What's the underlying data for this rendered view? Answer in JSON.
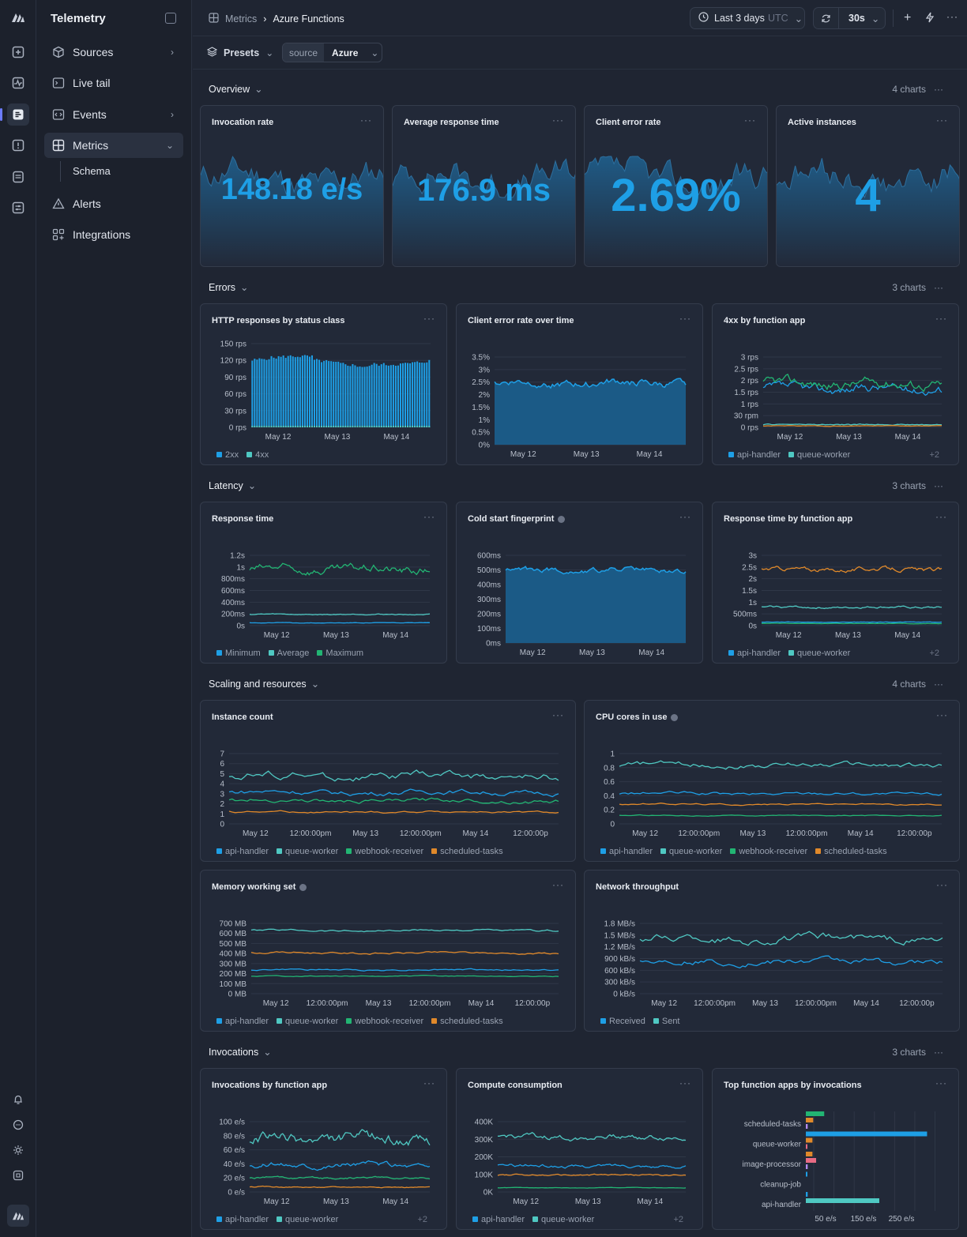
{
  "app": {
    "title": "Telemetry"
  },
  "nav": {
    "items": [
      {
        "label": "Sources"
      },
      {
        "label": "Live tail"
      },
      {
        "label": "Events"
      },
      {
        "label": "Metrics"
      },
      {
        "label": "Alerts"
      },
      {
        "label": "Integrations"
      }
    ],
    "sub": "Schema"
  },
  "breadcrumb": {
    "parent": "Metrics",
    "current": "Azure Functions"
  },
  "time": {
    "range": "Last 3 days",
    "tz": "UTC",
    "refresh": "30s"
  },
  "filters": {
    "presets": "Presets",
    "key": "source",
    "value": "Azure"
  },
  "sections": {
    "overview": {
      "title": "Overview",
      "count": "4 charts"
    },
    "errors": {
      "title": "Errors",
      "count": "3 charts"
    },
    "latency": {
      "title": "Latency",
      "count": "3 charts"
    },
    "scaling": {
      "title": "Scaling and resources",
      "count": "4 charts"
    },
    "invocations": {
      "title": "Invocations",
      "count": "3 charts"
    }
  },
  "stats": [
    {
      "title": "Invocation rate",
      "value": "148.18 e/s"
    },
    {
      "title": "Average response time",
      "value": "176.9 ms"
    },
    {
      "title": "Client error rate",
      "value": "2.69%"
    },
    {
      "title": "Active instances",
      "value": "4"
    }
  ],
  "colors": {
    "blue": "#1e9fe6",
    "teal": "#4fc8c2",
    "green": "#22b573",
    "orange": "#e0892a",
    "pink": "#e86b84",
    "violet": "#b58cf0"
  },
  "chart_data": [
    {
      "id": "http",
      "type": "bar",
      "title": "HTTP responses by status class",
      "yticks": [
        "150 rps",
        "120 rps",
        "90 rps",
        "60 rps",
        "30 rps",
        "0 rps"
      ],
      "xticks": [
        "May 12",
        "May 13",
        "May 14"
      ],
      "series": [
        {
          "name": "2xx",
          "color": "#1e9fe6"
        },
        {
          "name": "4xx",
          "color": "#4fc8c2"
        }
      ]
    },
    {
      "id": "cerr",
      "type": "area",
      "title": "Client error rate over time",
      "yticks": [
        "3.5%",
        "3%",
        "2.5%",
        "2%",
        "1.5%",
        "1%",
        "0.5%",
        "0%"
      ],
      "xticks": [
        "May 12",
        "May 13",
        "May 14"
      ]
    },
    {
      "id": "4xx",
      "type": "line",
      "title": "4xx by function app",
      "yticks": [
        "3 rps",
        "2.5 rps",
        "2 rps",
        "1.5 rps",
        "1 rps",
        "30 rpm",
        "0 rps"
      ],
      "xticks": [
        "May 12",
        "May 13",
        "May 14"
      ],
      "legend": [
        "api-handler",
        "queue-worker"
      ],
      "more": "+2"
    },
    {
      "id": "resp",
      "type": "line",
      "title": "Response time",
      "yticks": [
        "1.2s",
        "1s",
        "800ms",
        "600ms",
        "400ms",
        "200ms",
        "0s"
      ],
      "xticks": [
        "May 12",
        "May 13",
        "May 14"
      ],
      "legend": [
        "Minimum",
        "Average",
        "Maximum"
      ]
    },
    {
      "id": "cold",
      "type": "area",
      "title": "Cold start fingerprint",
      "yticks": [
        "600ms",
        "500ms",
        "400ms",
        "300ms",
        "200ms",
        "100ms",
        "0ms"
      ],
      "xticks": [
        "May 12",
        "May 13",
        "May 14"
      ]
    },
    {
      "id": "rtfa",
      "type": "line",
      "title": "Response time by function app",
      "yticks": [
        "3s",
        "2.5s",
        "2s",
        "1.5s",
        "1s",
        "500ms",
        "0s"
      ],
      "xticks": [
        "May 12",
        "May 13",
        "May 14"
      ],
      "legend": [
        "api-handler",
        "queue-worker"
      ],
      "more": "+2"
    },
    {
      "id": "inst",
      "type": "line",
      "title": "Instance count",
      "yticks": [
        "7",
        "6",
        "5",
        "4",
        "3",
        "2",
        "1",
        "0"
      ],
      "xticks": [
        "May 12",
        "12:00:00pm",
        "May 13",
        "12:00:00pm",
        "May 14",
        "12:00:00p"
      ],
      "legend": [
        "api-handler",
        "queue-worker",
        "webhook-receiver",
        "scheduled-tasks"
      ]
    },
    {
      "id": "cpu",
      "type": "line",
      "title": "CPU cores in use",
      "yticks": [
        "1",
        "0.8",
        "0.6",
        "0.4",
        "0.2",
        "0"
      ],
      "xticks": [
        "May 12",
        "12:00:00pm",
        "May 13",
        "12:00:00pm",
        "May 14",
        "12:00:00p"
      ],
      "legend": [
        "api-handler",
        "queue-worker",
        "webhook-receiver",
        "scheduled-tasks"
      ]
    },
    {
      "id": "mem",
      "type": "line",
      "title": "Memory working set",
      "yticks": [
        "700 MB",
        "600 MB",
        "500 MB",
        "400 MB",
        "300 MB",
        "200 MB",
        "100 MB",
        "0 MB"
      ],
      "xticks": [
        "May 12",
        "12:00:00pm",
        "May 13",
        "12:00:00pm",
        "May 14",
        "12:00:00p"
      ],
      "legend": [
        "api-handler",
        "queue-worker",
        "webhook-receiver",
        "scheduled-tasks"
      ]
    },
    {
      "id": "net",
      "type": "line",
      "title": "Network throughput",
      "yticks": [
        "1.8 MB/s",
        "1.5 MB/s",
        "1.2 MB/s",
        "900 kB/s",
        "600 kB/s",
        "300 kB/s",
        "0 kB/s"
      ],
      "xticks": [
        "May 12",
        "12:00:00pm",
        "May 13",
        "12:00:00pm",
        "May 14",
        "12:00:00p"
      ],
      "legend": [
        "Received",
        "Sent"
      ]
    },
    {
      "id": "ifa",
      "type": "line",
      "title": "Invocations by function app",
      "yticks": [
        "100 e/s",
        "80 e/s",
        "60 e/s",
        "40 e/s",
        "20 e/s",
        "0 e/s"
      ],
      "xticks": [
        "May 12",
        "May 13",
        "May 14"
      ],
      "legend": [
        "api-handler",
        "queue-worker"
      ],
      "more": "+2"
    },
    {
      "id": "comp",
      "type": "line",
      "title": "Compute consumption",
      "yticks": [
        "400K",
        "300K",
        "200K",
        "100K",
        "0K"
      ],
      "xticks": [
        "May 12",
        "May 13",
        "May 14"
      ],
      "legend": [
        "api-handler",
        "queue-worker"
      ],
      "more": "+2"
    },
    {
      "id": "top",
      "type": "bar",
      "title": "Top function apps by invocations",
      "categories": [
        "scheduled-tasks",
        "queue-worker",
        "image-processor",
        "cleanup-job",
        "api-handler"
      ],
      "xticks": [
        "50 e/s",
        "150 e/s",
        "250 e/s"
      ],
      "values": [
        {
          "green": 50,
          "orange": 20,
          "violet": 5
        },
        {
          "blue": 330,
          "orange": 18,
          "pink": 0
        },
        {
          "orange": 18,
          "pink": 28,
          "violet": 5
        },
        {
          "blue": 2
        },
        {
          "blue": 5,
          "teal": 200
        }
      ]
    }
  ]
}
